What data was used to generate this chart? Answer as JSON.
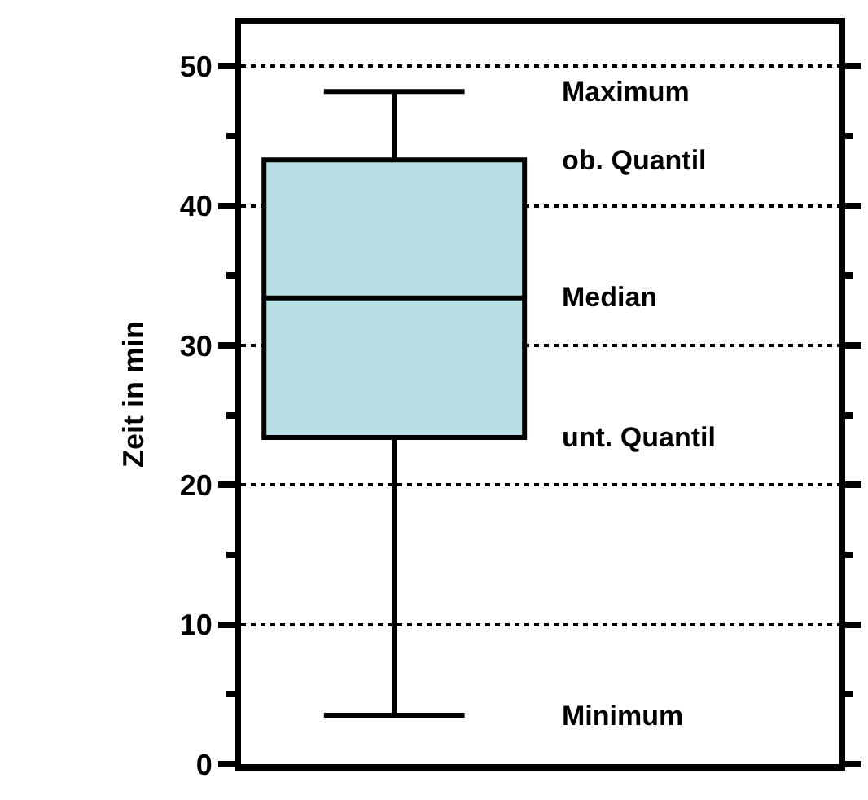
{
  "chart_data": {
    "type": "box",
    "ylabel": "Zeit in min",
    "categories": [
      null
    ],
    "boxes": [
      {
        "low": 3.5,
        "q1": 23.4,
        "median": 33.4,
        "q3": 43.3,
        "high": 48.2
      }
    ],
    "color": "#b8e0e4",
    "ylim": [
      0,
      53
    ],
    "yticks": [
      0,
      {
        "value": 5,
        "label": null
      },
      10,
      {
        "value": 15,
        "label": null
      },
      20,
      {
        "value": 25,
        "label": null
      },
      30,
      {
        "value": 35,
        "label": null
      },
      40,
      {
        "value": 45,
        "label": null
      },
      50
    ],
    "grid": "y",
    "annotations": [
      "Maximum",
      "ob. Quantil",
      "Median",
      "unt. Quantil",
      "Minimum"
    ]
  }
}
